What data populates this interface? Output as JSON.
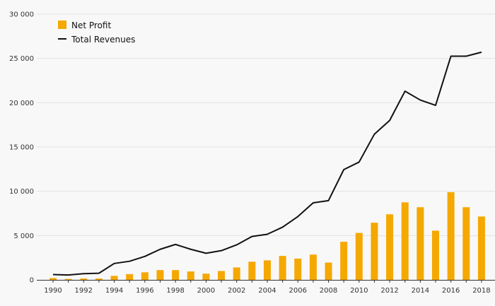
{
  "chart_data": {
    "type": "bar",
    "title": "",
    "xlabel": "",
    "ylabel": "",
    "years": [
      1990,
      1991,
      1992,
      1993,
      1994,
      1995,
      1996,
      1997,
      1998,
      1999,
      2000,
      2001,
      2002,
      2003,
      2004,
      2005,
      2006,
      2007,
      2008,
      2009,
      2010,
      2011,
      2012,
      2013,
      2014,
      2015,
      2016,
      2017,
      2018
    ],
    "x_tick_labels": [
      "1990",
      "1992",
      "1994",
      "1996",
      "1998",
      "2000",
      "2002",
      "2004",
      "2006",
      "2008",
      "2010",
      "2012",
      "2014",
      "2016",
      "2018"
    ],
    "y_ticks": [
      0,
      5000,
      10000,
      15000,
      20000,
      25000,
      30000
    ],
    "y_tick_labels": [
      "0",
      "5 000",
      "10 000",
      "15 000",
      "20 000",
      "25 000",
      "30 000"
    ],
    "ylim": [
      0,
      30000
    ],
    "grid": true,
    "legend_position": "top-left",
    "series": [
      {
        "name": "Net Profit",
        "kind": "bar",
        "color": "#f5a800",
        "values": [
          200,
          100,
          150,
          150,
          450,
          650,
          850,
          1100,
          1100,
          950,
          700,
          1000,
          1400,
          2050,
          2200,
          2700,
          2400,
          2850,
          1950,
          4300,
          5300,
          6450,
          7400,
          8750,
          8200,
          5550,
          9900,
          8200,
          7150
        ]
      },
      {
        "name": "Total Revenues",
        "kind": "line",
        "color": "#111111",
        "values": [
          600,
          550,
          700,
          750,
          1850,
          2100,
          2650,
          3450,
          4000,
          3450,
          3000,
          3300,
          3950,
          4900,
          5150,
          5950,
          7150,
          8700,
          8950,
          12450,
          13300,
          16450,
          18000,
          21300,
          20300,
          19700,
          25250,
          25250,
          25700
        ]
      }
    ]
  }
}
